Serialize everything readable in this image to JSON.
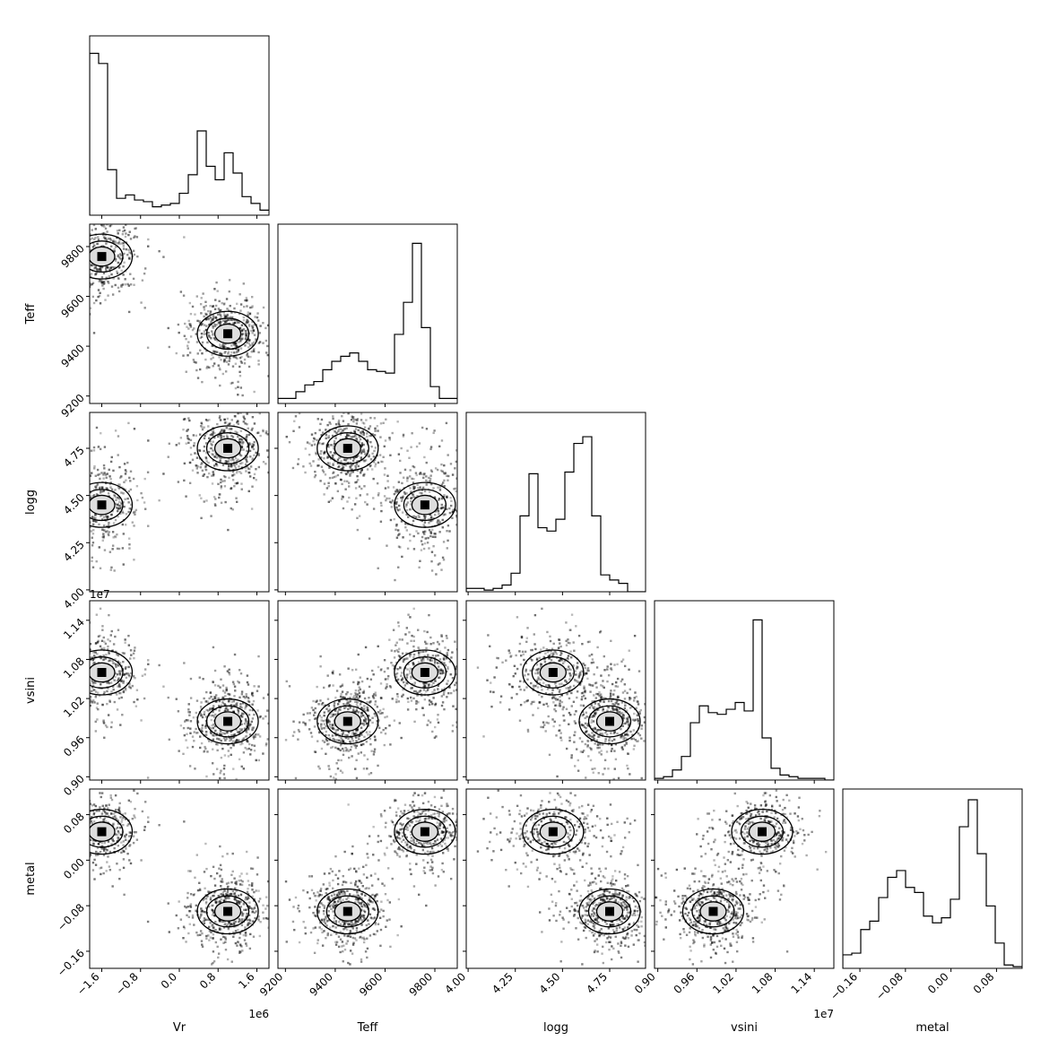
{
  "chart_data": {
    "type": "corner",
    "parameters": [
      {
        "name": "Vr",
        "label": "Vr",
        "offset_label": "1e6",
        "range": [
          -1.85,
          1.85
        ],
        "ticks": [
          -1.6,
          -0.8,
          0.0,
          0.8,
          1.6
        ],
        "tick_labels": [
          "−1.6",
          "−0.8",
          "0.0",
          "0.8",
          "1.6"
        ]
      },
      {
        "name": "Teff",
        "label": "Teff",
        "offset_label": "",
        "range": [
          9170,
          9890
        ],
        "ticks": [
          9200,
          9400,
          9600,
          9800
        ],
        "tick_labels": [
          "9200",
          "9400",
          "9600",
          "9800"
        ]
      },
      {
        "name": "logg",
        "label": "logg",
        "offset_label": "",
        "range": [
          3.99,
          4.94
        ],
        "ticks": [
          4.0,
          4.25,
          4.5,
          4.75
        ],
        "tick_labels": [
          "4.00",
          "4.25",
          "4.50",
          "4.75"
        ]
      },
      {
        "name": "vsini",
        "label": "vsini",
        "offset_label": "1e7",
        "range": [
          0.895,
          1.17
        ],
        "ticks": [
          0.9,
          0.96,
          1.02,
          1.08,
          1.14
        ],
        "tick_labels": [
          "0.90",
          "0.96",
          "1.02",
          "1.08",
          "1.14"
        ]
      },
      {
        "name": "metal",
        "label": "metal",
        "offset_label": "",
        "range": [
          -0.19,
          0.125
        ],
        "ticks": [
          -0.16,
          -0.08,
          0.0,
          0.08
        ],
        "tick_labels": [
          "−0.16",
          "−0.08",
          "0.00",
          "0.08"
        ]
      }
    ],
    "histograms": [
      {
        "param": "Vr",
        "bins": 20,
        "heights": [
          0.96,
          0.9,
          0.27,
          0.1,
          0.12,
          0.09,
          0.08,
          0.05,
          0.06,
          0.07,
          0.13,
          0.24,
          0.5,
          0.29,
          0.21,
          0.37,
          0.25,
          0.11,
          0.07,
          0.03
        ]
      },
      {
        "param": "Teff",
        "bins": 20,
        "heights": [
          0.03,
          0.03,
          0.07,
          0.11,
          0.13,
          0.2,
          0.25,
          0.28,
          0.3,
          0.25,
          0.2,
          0.19,
          0.18,
          0.41,
          0.6,
          0.95,
          0.45,
          0.1,
          0.03,
          0.03
        ]
      },
      {
        "param": "logg",
        "bins": 20,
        "heights": [
          0.02,
          0.02,
          0.01,
          0.02,
          0.04,
          0.11,
          0.45,
          0.7,
          0.38,
          0.36,
          0.43,
          0.71,
          0.88,
          0.92,
          0.45,
          0.1,
          0.07,
          0.05,
          0.0,
          0.0
        ]
      },
      {
        "param": "vsini",
        "bins": 20,
        "heights": [
          0.01,
          0.02,
          0.06,
          0.14,
          0.34,
          0.44,
          0.4,
          0.39,
          0.42,
          0.46,
          0.41,
          0.95,
          0.25,
          0.07,
          0.03,
          0.02,
          0.01,
          0.01,
          0.01,
          0.0
        ]
      },
      {
        "param": "metal",
        "bins": 20,
        "heights": [
          0.08,
          0.09,
          0.23,
          0.28,
          0.42,
          0.54,
          0.58,
          0.48,
          0.45,
          0.31,
          0.27,
          0.3,
          0.41,
          0.84,
          1.0,
          0.68,
          0.37,
          0.15,
          0.02,
          0.01
        ]
      }
    ],
    "modes": {
      "Vr": [
        -1.6,
        1.0
      ],
      "Teff": [
        9760,
        9450
      ],
      "logg": [
        4.45,
        4.75
      ],
      "vsini": [
        1.06,
        0.985
      ],
      "metal": [
        0.05,
        -0.09
      ]
    },
    "grid": false,
    "legend": "none"
  }
}
